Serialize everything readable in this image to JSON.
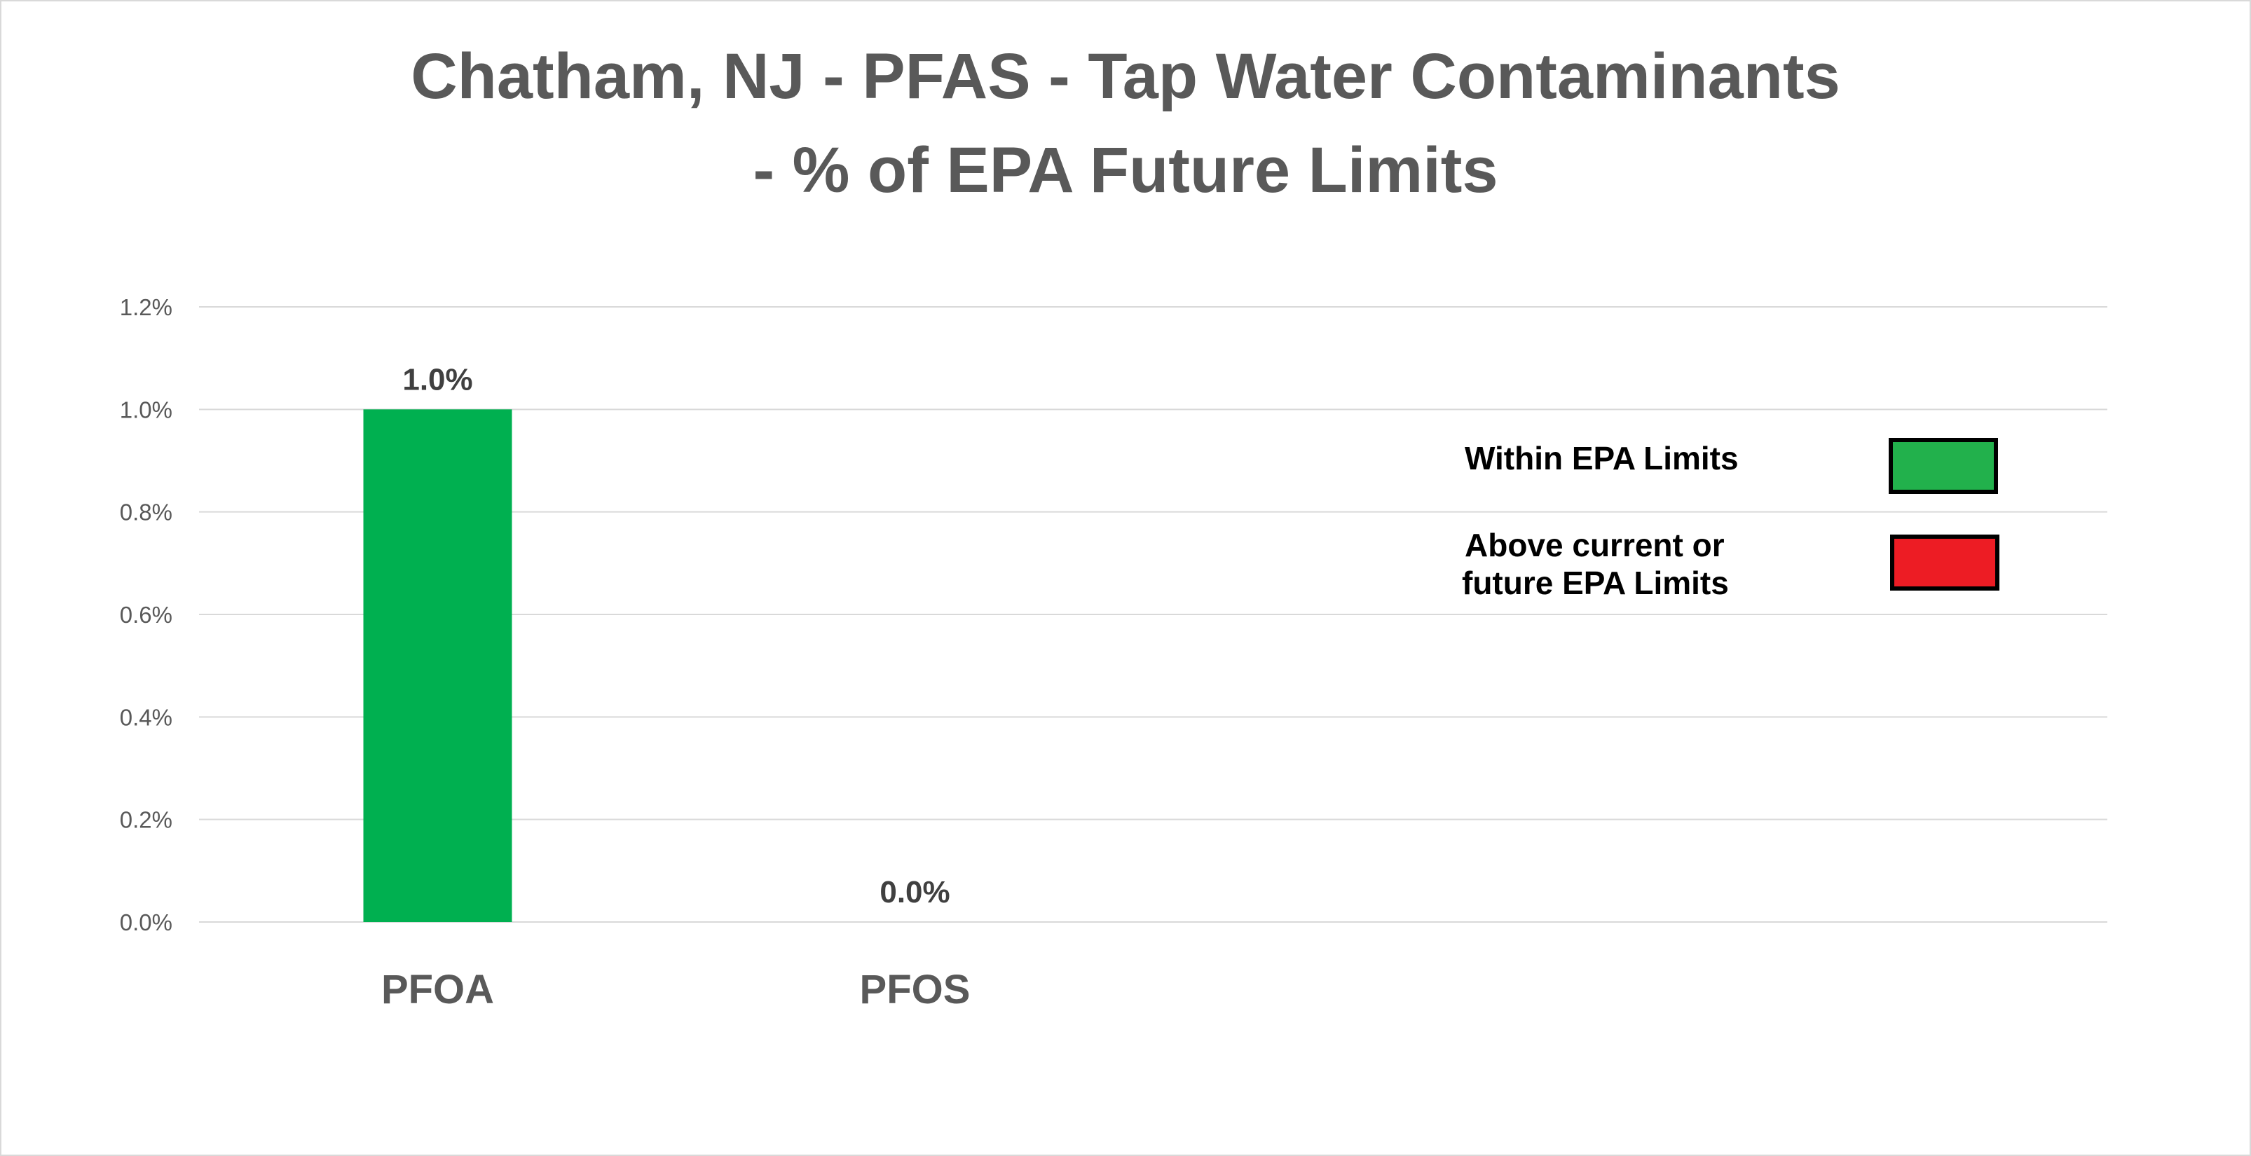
{
  "chart_data": {
    "type": "bar",
    "title_lines": [
      "Chatham, NJ - PFAS - Tap Water Contaminants",
      "- % of EPA Future Limits"
    ],
    "categories": [
      "PFOA",
      "PFOS"
    ],
    "values": [
      1.0,
      0.0
    ],
    "value_labels": [
      "1.0%",
      "0.0%"
    ],
    "bar_colors": [
      "#00b050",
      "#00b050"
    ],
    "ylim": [
      0,
      1.2
    ],
    "yticks": [
      0.0,
      0.2,
      0.4,
      0.6,
      0.8,
      1.0,
      1.2
    ],
    "ytick_labels": [
      "0.0%",
      "0.2%",
      "0.4%",
      "0.6%",
      "0.8%",
      "1.0%",
      "1.2%"
    ],
    "xlabel": "",
    "ylabel": "",
    "grid": true,
    "legend": {
      "placement": "right",
      "items": [
        {
          "lines": [
            "Within EPA Limits"
          ],
          "color": "#22b14c"
        },
        {
          "lines": [
            "Above current or",
            "future EPA Limits"
          ],
          "color": "#ed1c24"
        }
      ]
    }
  }
}
